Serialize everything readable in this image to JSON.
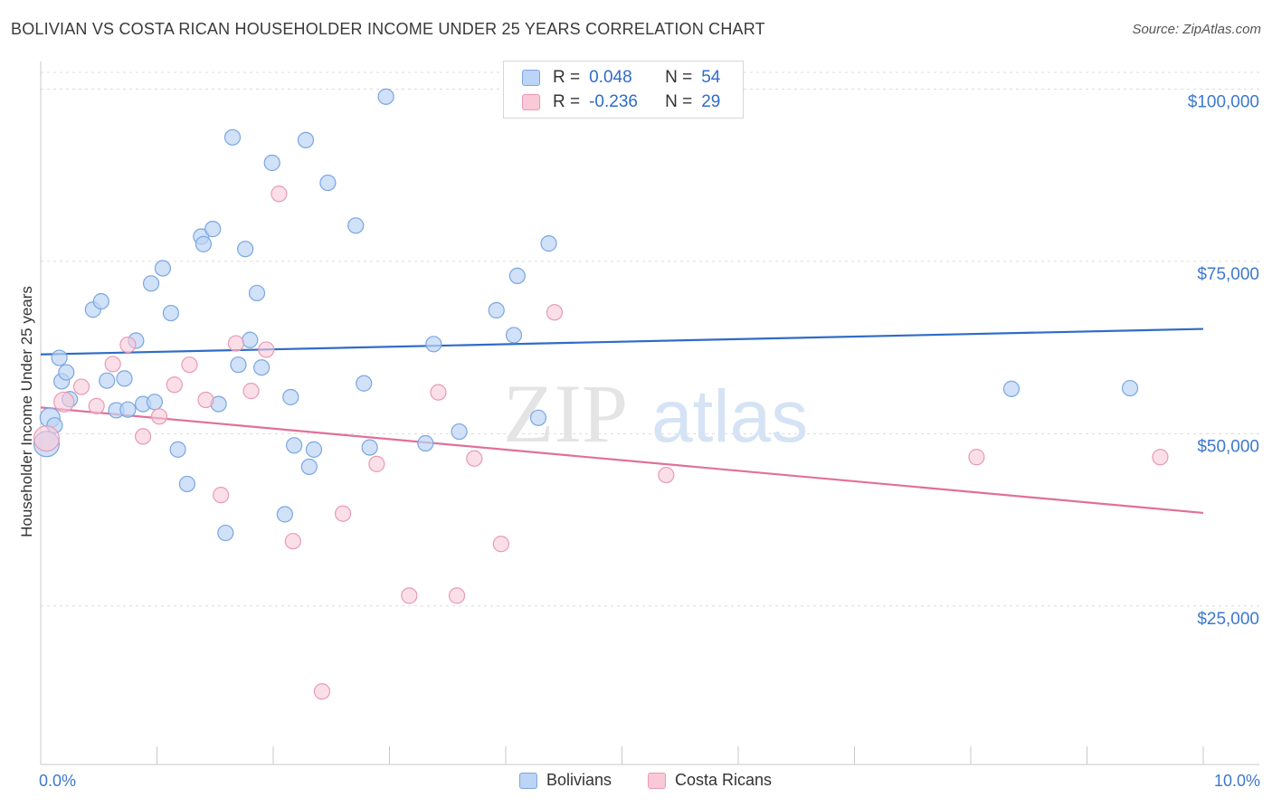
{
  "header": {
    "title": "BOLIVIAN VS COSTA RICAN HOUSEHOLDER INCOME UNDER 25 YEARS CORRELATION CHART",
    "source": "Source: ZipAtlas.com"
  },
  "watermark": {
    "zip": "ZIP",
    "atlas": "atlas"
  },
  "stats": {
    "r_label": "R =",
    "n_label": "N =",
    "rows": [
      {
        "r": "0.048",
        "n": "54"
      },
      {
        "r": "-0.236",
        "n": "29"
      }
    ]
  },
  "colors": {
    "blue_fill": "#bcd4f5",
    "blue_stroke": "#7aa6e2",
    "blue_line": "#2f6cc7",
    "pink_fill": "#f9c9d8",
    "pink_stroke": "#e99ab3",
    "pink_line": "#e0709a",
    "tick_label": "#3d78cf",
    "grid": "#dcdcdc"
  },
  "chart_data": {
    "type": "scatter",
    "title": "BOLIVIAN VS COSTA RICAN HOUSEHOLDER INCOME UNDER 25 YEARS CORRELATION CHART",
    "xlabel": "",
    "ylabel": "Householder Income Under 25 years",
    "xlim": [
      0,
      10
    ],
    "ylim": [
      2000,
      104000
    ],
    "x_tick_labels": [
      "0.0%",
      "10.0%"
    ],
    "y_ticks": [
      25000,
      50000,
      75000,
      100000
    ],
    "y_tick_labels": [
      "$25,000",
      "$50,000",
      "$75,000",
      "$100,000"
    ],
    "grid": true,
    "legend_position": "bottom-center",
    "series": [
      {
        "name": "Bolivians",
        "r": 0.048,
        "n": 54,
        "trend": [
          [
            0,
            61500
          ],
          [
            10,
            65200
          ]
        ],
        "points": [
          [
            0.05,
            48500
          ],
          [
            0.08,
            52300
          ],
          [
            0.12,
            51200
          ],
          [
            0.16,
            61000
          ],
          [
            0.18,
            57600
          ],
          [
            0.22,
            58900
          ],
          [
            0.25,
            55000
          ],
          [
            0.45,
            68000
          ],
          [
            0.52,
            69200
          ],
          [
            0.57,
            57700
          ],
          [
            0.65,
            53400
          ],
          [
            0.72,
            58000
          ],
          [
            0.75,
            53500
          ],
          [
            0.82,
            63500
          ],
          [
            0.88,
            54300
          ],
          [
            0.95,
            71800
          ],
          [
            0.98,
            54600
          ],
          [
            1.05,
            74000
          ],
          [
            1.12,
            67500
          ],
          [
            1.18,
            47700
          ],
          [
            1.26,
            42700
          ],
          [
            1.38,
            78600
          ],
          [
            1.4,
            77500
          ],
          [
            1.48,
            79700
          ],
          [
            1.53,
            54300
          ],
          [
            1.59,
            35600
          ],
          [
            1.65,
            93000
          ],
          [
            1.7,
            60000
          ],
          [
            1.76,
            76800
          ],
          [
            1.8,
            63600
          ],
          [
            1.86,
            70400
          ],
          [
            1.9,
            59600
          ],
          [
            1.99,
            89300
          ],
          [
            2.1,
            38300
          ],
          [
            2.15,
            55300
          ],
          [
            2.18,
            48300
          ],
          [
            2.28,
            92600
          ],
          [
            2.31,
            45200
          ],
          [
            2.35,
            47700
          ],
          [
            2.47,
            86400
          ],
          [
            2.71,
            80200
          ],
          [
            2.78,
            57300
          ],
          [
            2.83,
            48000
          ],
          [
            2.97,
            98900
          ],
          [
            3.31,
            48600
          ],
          [
            3.38,
            63000
          ],
          [
            3.6,
            50300
          ],
          [
            3.92,
            67900
          ],
          [
            4.07,
            64300
          ],
          [
            4.1,
            72900
          ],
          [
            4.28,
            52300
          ],
          [
            4.37,
            77600
          ],
          [
            8.35,
            56500
          ],
          [
            9.37,
            56600
          ]
        ]
      },
      {
        "name": "Costa Ricans",
        "r": -0.236,
        "n": 29,
        "trend": [
          [
            0,
            53800
          ],
          [
            10,
            38500
          ]
        ],
        "points": [
          [
            0.05,
            49300
          ],
          [
            0.2,
            54600
          ],
          [
            0.35,
            56800
          ],
          [
            0.48,
            54000
          ],
          [
            0.62,
            60100
          ],
          [
            0.75,
            62900
          ],
          [
            0.88,
            49600
          ],
          [
            1.02,
            52500
          ],
          [
            1.15,
            57100
          ],
          [
            1.28,
            60000
          ],
          [
            1.42,
            54900
          ],
          [
            1.55,
            41100
          ],
          [
            1.68,
            63100
          ],
          [
            1.81,
            56200
          ],
          [
            1.94,
            62200
          ],
          [
            2.05,
            84800
          ],
          [
            2.17,
            34400
          ],
          [
            2.42,
            12600
          ],
          [
            2.6,
            38400
          ],
          [
            2.89,
            45600
          ],
          [
            3.17,
            26500
          ],
          [
            3.42,
            56000
          ],
          [
            3.58,
            26500
          ],
          [
            3.73,
            46400
          ],
          [
            3.96,
            34000
          ],
          [
            4.42,
            67600
          ],
          [
            5.38,
            44000
          ],
          [
            8.05,
            46600
          ],
          [
            9.63,
            46600
          ]
        ]
      }
    ]
  }
}
